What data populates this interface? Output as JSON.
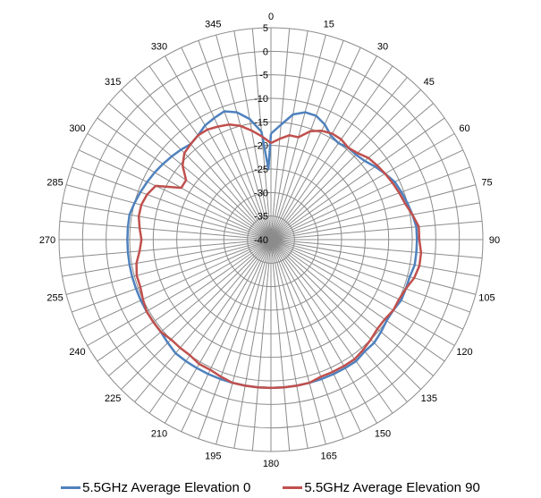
{
  "chart_data": {
    "type": "polar-line",
    "title": "",
    "angle_ticks": [
      "0",
      "15",
      "30",
      "45",
      "60",
      "75",
      "90",
      "105",
      "120",
      "135",
      "150",
      "165",
      "180",
      "195",
      "210",
      "225",
      "240",
      "255",
      "270",
      "285",
      "300",
      "315",
      "330",
      "345"
    ],
    "radial_ticks": [
      "5",
      "0",
      "-5",
      "-10",
      "-15",
      "-20",
      "-25",
      "-30",
      "-35",
      "-40"
    ],
    "rlim": [
      -40,
      5
    ],
    "grid": true,
    "legend_position": "bottom",
    "series": [
      {
        "name": "5.5GHz Average Elevation 0",
        "color": "#4F81BD",
        "angles": [
          0,
          5,
          10,
          15,
          20,
          25,
          30,
          35,
          40,
          45,
          50,
          55,
          60,
          65,
          70,
          75,
          80,
          85,
          90,
          95,
          100,
          105,
          110,
          115,
          120,
          125,
          130,
          135,
          140,
          145,
          150,
          155,
          160,
          165,
          170,
          175,
          180,
          185,
          190,
          195,
          200,
          205,
          210,
          215,
          220,
          225,
          230,
          235,
          240,
          245,
          250,
          255,
          260,
          265,
          270,
          275,
          280,
          285,
          290,
          295,
          300,
          305,
          310,
          315,
          320,
          325,
          330,
          335,
          340,
          345,
          350,
          355,
          358,
          360
        ],
        "values": [
          -17.5,
          -15.5,
          -13,
          -12,
          -12,
          -13,
          -14.5,
          -15,
          -14.5,
          -14.5,
          -14,
          -13,
          -12,
          -11,
          -10.5,
          -10,
          -9.5,
          -9,
          -9,
          -9,
          -9,
          -9.5,
          -9.5,
          -9.5,
          -10,
          -10,
          -9.5,
          -9,
          -9,
          -8.5,
          -8.5,
          -8.5,
          -8.5,
          -8.5,
          -8.5,
          -8.5,
          -8.5,
          -8.5,
          -8.5,
          -8.5,
          -8.5,
          -8.5,
          -8.5,
          -8.5,
          -8.5,
          -9,
          -9.5,
          -9.5,
          -9.5,
          -9.5,
          -9.5,
          -9.5,
          -9.5,
          -9.5,
          -9.5,
          -9.5,
          -9.5,
          -10,
          -10.5,
          -11,
          -11.5,
          -12,
          -12.5,
          -13,
          -13.5,
          -13,
          -12,
          -11.5,
          -11,
          -12,
          -14,
          -17,
          -25,
          -17.5
        ]
      },
      {
        "name": "5.5GHz Average Elevation 90",
        "color": "#C0504D",
        "angles": [
          0,
          5,
          10,
          15,
          20,
          25,
          30,
          35,
          40,
          45,
          50,
          55,
          60,
          65,
          70,
          75,
          80,
          85,
          90,
          95,
          100,
          105,
          110,
          115,
          120,
          125,
          130,
          135,
          140,
          145,
          150,
          155,
          160,
          165,
          170,
          175,
          180,
          185,
          190,
          195,
          200,
          205,
          210,
          215,
          220,
          225,
          230,
          235,
          240,
          245,
          250,
          255,
          260,
          265,
          270,
          275,
          280,
          285,
          290,
          295,
          300,
          305,
          310,
          315,
          320,
          325,
          330,
          335,
          340,
          345,
          350,
          355,
          360
        ],
        "values": [
          -19.5,
          -18.5,
          -17.5,
          -17.5,
          -15.5,
          -14.5,
          -14,
          -14,
          -14.5,
          -14,
          -13,
          -12.5,
          -12,
          -11.5,
          -11,
          -10.5,
          -9.5,
          -8.5,
          -8.5,
          -8,
          -8,
          -8.5,
          -9.5,
          -10,
          -10,
          -10.5,
          -10.5,
          -10,
          -9.5,
          -9,
          -9,
          -9,
          -9,
          -8.5,
          -8.5,
          -8.5,
          -8.5,
          -8.5,
          -8.5,
          -8.5,
          -9,
          -9.5,
          -9.5,
          -10,
          -10,
          -10,
          -9.5,
          -9.5,
          -9.5,
          -10,
          -10.5,
          -10.5,
          -11,
          -12,
          -12.5,
          -12,
          -11.5,
          -11.5,
          -12,
          -13,
          -18,
          -18,
          -15.5,
          -14,
          -13.5,
          -13,
          -13,
          -13.5,
          -14,
          -15,
          -16.5,
          -18,
          -19.5
        ]
      }
    ]
  },
  "legend": {
    "item0": "5.5GHz Average Elevation 0",
    "item1": "5.5GHz Average Elevation 90"
  }
}
